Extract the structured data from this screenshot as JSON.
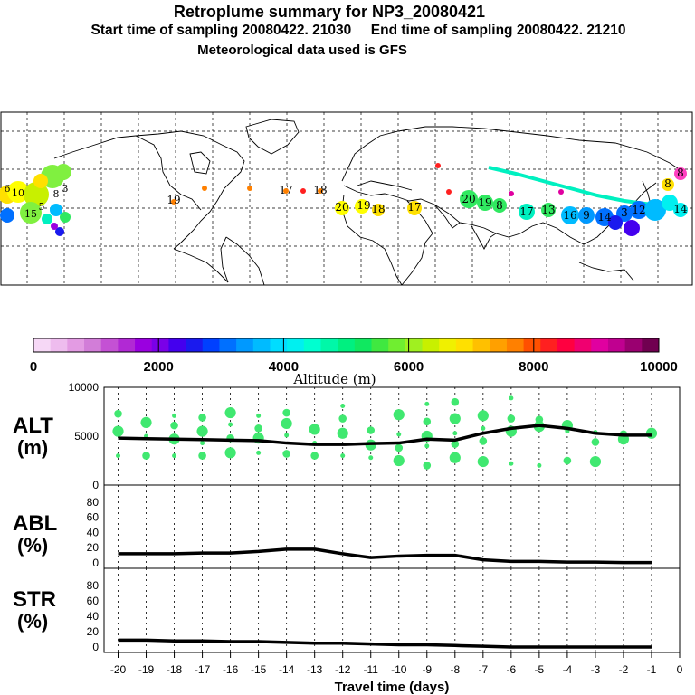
{
  "header": {
    "title": "Retroplume summary for NP3_20080421",
    "sampling_line": "Start time of sampling 20080422. 21030     End time of sampling 20080422. 21210",
    "met_line": "Meteorological data used is GFS"
  },
  "colorbar": {
    "ticks": [
      "0",
      "2000",
      "4000",
      "6000",
      "8000",
      "10000"
    ],
    "label": "Altitude (m)",
    "colors": [
      "#f6d8f6",
      "#eebcee",
      "#e39be3",
      "#d27dd8",
      "#c451d4",
      "#b129d4",
      "#9a00e0",
      "#7a00e8",
      "#4400ee",
      "#1a1aee",
      "#0040ff",
      "#0070ff",
      "#0099ff",
      "#00bbff",
      "#00ddff",
      "#00f0f0",
      "#00ffd0",
      "#00f8a8",
      "#00f080",
      "#10e860",
      "#40e840",
      "#70ee30",
      "#a0f020",
      "#c8f000",
      "#f0f000",
      "#ffe000",
      "#ffc000",
      "#ffa000",
      "#ff8000",
      "#ff5000",
      "#ff2020",
      "#ff0040",
      "#f00070",
      "#e000a0",
      "#c00090",
      "#9a0070",
      "#700050"
    ]
  },
  "map_labels": [
    {
      "t": "20",
      "c": "#ffff00"
    },
    {
      "t": "19",
      "c": "#ffff00"
    },
    {
      "t": "18",
      "c": "#ffff00"
    },
    {
      "t": "17",
      "c": "#ffff00"
    },
    {
      "t": "20",
      "c": "#30e860"
    },
    {
      "t": "19",
      "c": "#30e860"
    },
    {
      "t": "8",
      "c": "#30e860"
    },
    {
      "t": "17",
      "c": "#00f0c0"
    },
    {
      "t": "13",
      "c": "#30e860"
    },
    {
      "t": "16",
      "c": "#00bbff"
    },
    {
      "t": "9",
      "c": "#0099ff"
    },
    {
      "t": "14",
      "c": "#0070ff"
    },
    {
      "t": "3",
      "c": "#0070ff"
    },
    {
      "t": "12",
      "c": "#0070ff"
    },
    {
      "t": "8",
      "c": "#ffe000"
    },
    {
      "t": "14",
      "c": "#00f0f0"
    },
    {
      "t": "8",
      "c": "#ff40c0"
    },
    {
      "t": "10",
      "c": "#ffff00"
    },
    {
      "t": "3",
      "c": "#80f040"
    },
    {
      "t": "5",
      "c": "#30e860"
    },
    {
      "t": "8",
      "c": "#00f0c0"
    },
    {
      "t": "6",
      "c": "#ffe000"
    },
    {
      "t": "15",
      "c": "#30e860"
    },
    {
      "t": "19",
      "c": "#ff8000"
    },
    {
      "t": "17",
      "c": "#ff8000"
    },
    {
      "t": "18",
      "c": "#ff8000"
    }
  ],
  "panels": {
    "alt": {
      "label_line1": "ALT",
      "label_line2": "(m)"
    },
    "abl": {
      "label_line1": "ABL",
      "label_line2": "(%)"
    },
    "str": {
      "label_line1": "STR",
      "label_line2": "(%)"
    }
  },
  "chart_data": [
    {
      "type": "line",
      "name": "ALT",
      "ylabel": "ALT (m)",
      "ylim": [
        0,
        10000
      ],
      "yticks": [
        "0",
        "5000",
        "10000"
      ],
      "x": [
        -20,
        -19,
        -18,
        -17,
        -16,
        -15,
        -14,
        -13,
        -12,
        -11,
        -10,
        -9,
        -8,
        -7,
        -6,
        -5,
        -4,
        -3,
        -2,
        -1
      ],
      "values": [
        4800,
        4750,
        4700,
        4650,
        4600,
        4550,
        4300,
        4150,
        4150,
        4250,
        4300,
        4700,
        4600,
        5300,
        5800,
        6100,
        5800,
        5300,
        5100,
        5100
      ],
      "plume_dots": [
        {
          "x": -20,
          "alt": [
            7300,
            5500,
            3000
          ]
        },
        {
          "x": -19,
          "alt": [
            6400,
            5000,
            3000
          ]
        },
        {
          "x": -18,
          "alt": [
            7100,
            6100,
            4700,
            3000
          ]
        },
        {
          "x": -17,
          "alt": [
            6900,
            5500,
            4300,
            3000
          ]
        },
        {
          "x": -16,
          "alt": [
            7400,
            6200,
            4800,
            3300
          ]
        },
        {
          "x": -15,
          "alt": [
            7100,
            5800,
            4800,
            3300
          ]
        },
        {
          "x": -14,
          "alt": [
            7400,
            6300,
            5100,
            3200
          ]
        },
        {
          "x": -13,
          "alt": [
            5700,
            4300,
            3000
          ]
        },
        {
          "x": -12,
          "alt": [
            8100,
            6800,
            5300,
            3000
          ]
        },
        {
          "x": -11,
          "alt": [
            5600,
            4100,
            2800
          ]
        },
        {
          "x": -10,
          "alt": [
            7200,
            5200,
            3800,
            2500
          ]
        },
        {
          "x": -9,
          "alt": [
            8300,
            6500,
            5000,
            4000,
            2000
          ]
        },
        {
          "x": -8,
          "alt": [
            8500,
            6800,
            5300,
            4200,
            2800
          ]
        },
        {
          "x": -7,
          "alt": [
            7100,
            5800,
            4500,
            2400
          ]
        },
        {
          "x": -6,
          "alt": [
            8900,
            6800,
            5500,
            2200
          ]
        },
        {
          "x": -5,
          "alt": [
            6700,
            6000,
            2000
          ]
        },
        {
          "x": -4,
          "alt": [
            6100,
            5500,
            2500
          ]
        },
        {
          "x": -3,
          "alt": [
            5400,
            4400,
            2400
          ]
        },
        {
          "x": -2,
          "alt": [
            5200,
            4700
          ]
        },
        {
          "x": -1,
          "alt": [
            5300
          ]
        }
      ],
      "xlabel": "Travel time (days)"
    },
    {
      "type": "line",
      "name": "ABL",
      "ylabel": "ABL (%)",
      "ylim": [
        0,
        100
      ],
      "yticks": [
        "0",
        "20",
        "40",
        "60",
        "80"
      ],
      "x": [
        -20,
        -19,
        -18,
        -17,
        -16,
        -15,
        -14,
        -13,
        -12,
        -11,
        -10,
        -9,
        -8,
        -7,
        -6,
        -5,
        -4,
        -3,
        -2,
        -1
      ],
      "values": [
        12,
        12,
        12,
        13,
        13,
        15,
        18,
        18,
        12,
        7,
        9,
        10,
        10,
        4,
        2,
        2,
        1,
        1,
        0.5,
        0.5
      ]
    },
    {
      "type": "line",
      "name": "STR",
      "ylabel": "STR (%)",
      "ylim": [
        0,
        100
      ],
      "yticks": [
        "0",
        "20",
        "40",
        "60",
        "80"
      ],
      "x": [
        -20,
        -19,
        -18,
        -17,
        -16,
        -15,
        -14,
        -13,
        -12,
        -11,
        -10,
        -9,
        -8,
        -7,
        -6,
        -5,
        -4,
        -3,
        -2,
        -1
      ],
      "values": [
        9,
        9,
        8,
        8,
        7,
        7,
        6,
        5,
        5,
        4,
        3,
        3,
        2,
        1,
        0,
        0,
        0,
        0,
        0,
        0
      ],
      "xticks": [
        "-20",
        "-19",
        "-18",
        "-17",
        "-16",
        "-15",
        "-14",
        "-13",
        "-12",
        "-11",
        "-10",
        "-9",
        "-8",
        "-7",
        "-6",
        "-5",
        "-4",
        "-3",
        "-2",
        "-1",
        "0"
      ],
      "xlabel": "Travel time (days)"
    }
  ]
}
